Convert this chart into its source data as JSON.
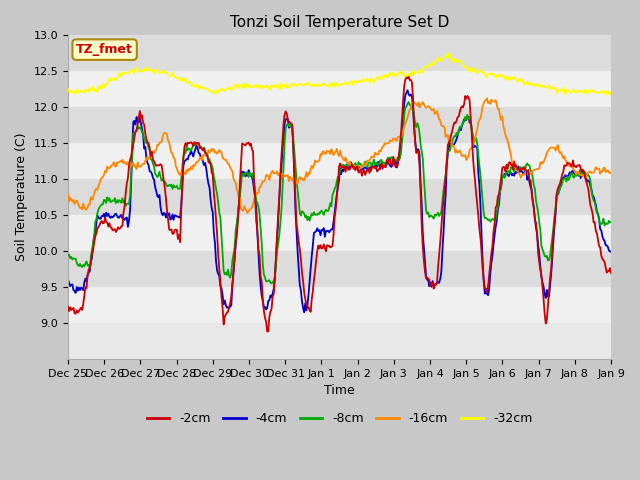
{
  "title": "Tonzi Soil Temperature Set D",
  "xlabel": "Time",
  "ylabel": "Soil Temperature (C)",
  "ylim": [
    8.5,
    13.0
  ],
  "yticks": [
    9.0,
    9.5,
    10.0,
    10.5,
    11.0,
    11.5,
    12.0,
    12.5,
    13.0
  ],
  "line_colors": {
    "-2cm": "#cc0000",
    "-4cm": "#0000cc",
    "-8cm": "#00aa00",
    "-16cm": "#ff8800",
    "-32cm": "#ffff00"
  },
  "legend_labels": [
    "-2cm",
    "-4cm",
    "-8cm",
    "-16cm",
    "-32cm"
  ],
  "annotation_text": "TZ_fmet",
  "annotation_color": "#cc0000",
  "annotation_bg": "#ffffcc",
  "annotation_border": "#aa8800",
  "x_tick_labels": [
    "Dec 25",
    "Dec 26",
    "Dec 27",
    "Dec 28",
    "Dec 29",
    "Dec 30",
    "Dec 31",
    "Jan 1",
    "Jan 2",
    "Jan 3",
    "Jan 4",
    "Jan 5",
    "Jan 6",
    "Jan 7",
    "Jan 8",
    "Jan 9"
  ],
  "band_colors": [
    "#f0f0f0",
    "#dcdcdc"
  ],
  "fig_bg": "#c8c8c8",
  "n_points": 500
}
